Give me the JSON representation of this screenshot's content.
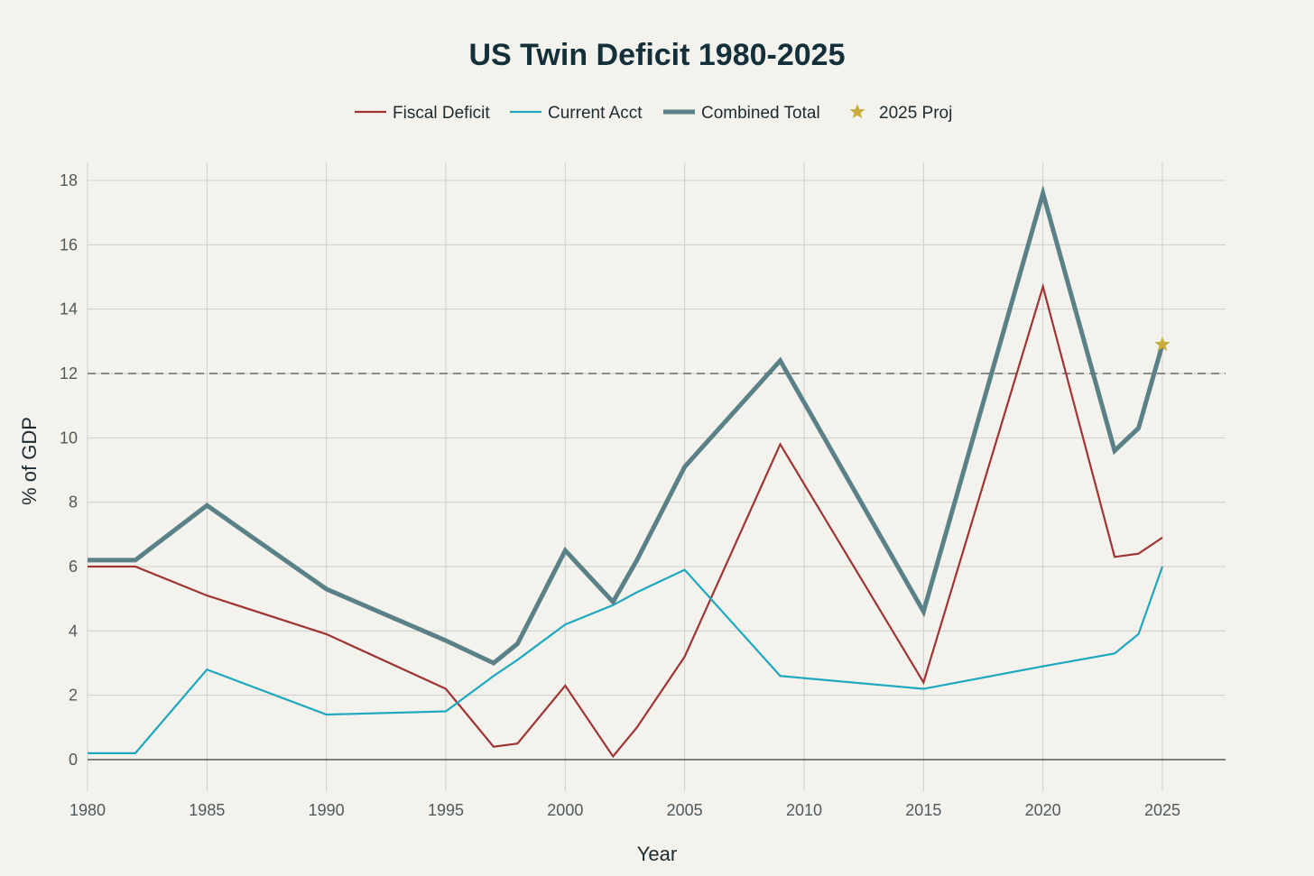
{
  "chart_data": {
    "type": "line",
    "title": "US Twin Deficit 1980-2025",
    "xlabel": "Year",
    "ylabel": "% of GDP",
    "xlim": [
      1980,
      2027
    ],
    "ylim": [
      -1,
      18.6
    ],
    "x_ticks": [
      1980,
      1985,
      1990,
      1995,
      2000,
      2005,
      2010,
      2015,
      2020,
      2025
    ],
    "y_ticks": [
      0,
      2,
      4,
      6,
      8,
      10,
      12,
      14,
      16,
      18
    ],
    "grid": true,
    "legend_position": "top-center",
    "threshold_line": {
      "y": 12,
      "style": "dashed",
      "color": "#8a8a86"
    },
    "series": [
      {
        "name": "Fiscal Deficit",
        "color": "#9e3434",
        "x": [
          1980,
          1982,
          1985,
          1990,
          1995,
          1997,
          1998,
          2000,
          2002,
          2003,
          2005,
          2009,
          2015,
          2020,
          2023,
          2024,
          2025
        ],
        "values": [
          6.0,
          6.0,
          5.1,
          3.9,
          2.2,
          0.4,
          0.5,
          2.3,
          0.1,
          1.0,
          3.2,
          9.8,
          2.4,
          14.7,
          6.3,
          6.4,
          6.9
        ]
      },
      {
        "name": "Current Acct",
        "color": "#1ea8bf",
        "x": [
          1980,
          1982,
          1985,
          1990,
          1995,
          1997,
          1998,
          2000,
          2002,
          2003,
          2005,
          2009,
          2015,
          2020,
          2023,
          2024,
          2025
        ],
        "values": [
          0.2,
          0.2,
          2.8,
          1.4,
          1.5,
          2.6,
          3.1,
          4.2,
          4.8,
          5.2,
          5.9,
          2.6,
          2.2,
          2.9,
          3.3,
          3.9,
          6.0
        ]
      },
      {
        "name": "Combined Total",
        "color": "#5a8088",
        "x": [
          1980,
          1982,
          1985,
          1990,
          1995,
          1997,
          1998,
          2000,
          2002,
          2003,
          2005,
          2009,
          2015,
          2020,
          2023,
          2024,
          2025
        ],
        "values": [
          6.2,
          6.2,
          7.9,
          5.3,
          3.7,
          3.0,
          3.6,
          6.5,
          4.9,
          6.2,
          9.1,
          12.4,
          4.6,
          17.6,
          9.6,
          10.3,
          12.9
        ]
      },
      {
        "name": "2025 Proj",
        "color": "#c9ad3c",
        "marker": "star",
        "x": [
          2025
        ],
        "values": [
          12.9
        ]
      }
    ]
  }
}
